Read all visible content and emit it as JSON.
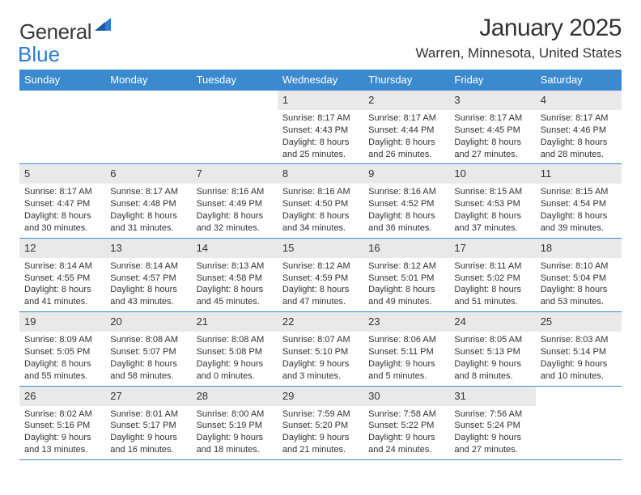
{
  "logo": {
    "word1": "General",
    "word2": "Blue"
  },
  "title": "January 2025",
  "location": "Warren, Minnesota, United States",
  "colors": {
    "header_bg": "#3b8ad0",
    "header_text": "#ffffff",
    "border": "#3b8ad0",
    "daynum_bg": "#e9e9e9",
    "text": "#333333",
    "logo_gray": "#3a3a3a",
    "logo_blue": "#2e7cd6",
    "page_bg": "#ffffff"
  },
  "typography": {
    "title_fontsize": 30,
    "location_fontsize": 17,
    "dayhead_fontsize": 13,
    "daynum_fontsize": 13,
    "daytext_fontsize": 11
  },
  "day_headers": [
    "Sunday",
    "Monday",
    "Tuesday",
    "Wednesday",
    "Thursday",
    "Friday",
    "Saturday"
  ],
  "weeks": [
    [
      {
        "n": "",
        "sr": "",
        "ss": "",
        "dh": "",
        "dm": ""
      },
      {
        "n": "",
        "sr": "",
        "ss": "",
        "dh": "",
        "dm": ""
      },
      {
        "n": "",
        "sr": "",
        "ss": "",
        "dh": "",
        "dm": ""
      },
      {
        "n": "1",
        "sr": "8:17 AM",
        "ss": "4:43 PM",
        "dh": "8",
        "dm": "25"
      },
      {
        "n": "2",
        "sr": "8:17 AM",
        "ss": "4:44 PM",
        "dh": "8",
        "dm": "26"
      },
      {
        "n": "3",
        "sr": "8:17 AM",
        "ss": "4:45 PM",
        "dh": "8",
        "dm": "27"
      },
      {
        "n": "4",
        "sr": "8:17 AM",
        "ss": "4:46 PM",
        "dh": "8",
        "dm": "28"
      }
    ],
    [
      {
        "n": "5",
        "sr": "8:17 AM",
        "ss": "4:47 PM",
        "dh": "8",
        "dm": "30"
      },
      {
        "n": "6",
        "sr": "8:17 AM",
        "ss": "4:48 PM",
        "dh": "8",
        "dm": "31"
      },
      {
        "n": "7",
        "sr": "8:16 AM",
        "ss": "4:49 PM",
        "dh": "8",
        "dm": "32"
      },
      {
        "n": "8",
        "sr": "8:16 AM",
        "ss": "4:50 PM",
        "dh": "8",
        "dm": "34"
      },
      {
        "n": "9",
        "sr": "8:16 AM",
        "ss": "4:52 PM",
        "dh": "8",
        "dm": "36"
      },
      {
        "n": "10",
        "sr": "8:15 AM",
        "ss": "4:53 PM",
        "dh": "8",
        "dm": "37"
      },
      {
        "n": "11",
        "sr": "8:15 AM",
        "ss": "4:54 PM",
        "dh": "8",
        "dm": "39"
      }
    ],
    [
      {
        "n": "12",
        "sr": "8:14 AM",
        "ss": "4:55 PM",
        "dh": "8",
        "dm": "41"
      },
      {
        "n": "13",
        "sr": "8:14 AM",
        "ss": "4:57 PM",
        "dh": "8",
        "dm": "43"
      },
      {
        "n": "14",
        "sr": "8:13 AM",
        "ss": "4:58 PM",
        "dh": "8",
        "dm": "45"
      },
      {
        "n": "15",
        "sr": "8:12 AM",
        "ss": "4:59 PM",
        "dh": "8",
        "dm": "47"
      },
      {
        "n": "16",
        "sr": "8:12 AM",
        "ss": "5:01 PM",
        "dh": "8",
        "dm": "49"
      },
      {
        "n": "17",
        "sr": "8:11 AM",
        "ss": "5:02 PM",
        "dh": "8",
        "dm": "51"
      },
      {
        "n": "18",
        "sr": "8:10 AM",
        "ss": "5:04 PM",
        "dh": "8",
        "dm": "53"
      }
    ],
    [
      {
        "n": "19",
        "sr": "8:09 AM",
        "ss": "5:05 PM",
        "dh": "8",
        "dm": "55"
      },
      {
        "n": "20",
        "sr": "8:08 AM",
        "ss": "5:07 PM",
        "dh": "8",
        "dm": "58"
      },
      {
        "n": "21",
        "sr": "8:08 AM",
        "ss": "5:08 PM",
        "dh": "9",
        "dm": "0"
      },
      {
        "n": "22",
        "sr": "8:07 AM",
        "ss": "5:10 PM",
        "dh": "9",
        "dm": "3"
      },
      {
        "n": "23",
        "sr": "8:06 AM",
        "ss": "5:11 PM",
        "dh": "9",
        "dm": "5"
      },
      {
        "n": "24",
        "sr": "8:05 AM",
        "ss": "5:13 PM",
        "dh": "9",
        "dm": "8"
      },
      {
        "n": "25",
        "sr": "8:03 AM",
        "ss": "5:14 PM",
        "dh": "9",
        "dm": "10"
      }
    ],
    [
      {
        "n": "26",
        "sr": "8:02 AM",
        "ss": "5:16 PM",
        "dh": "9",
        "dm": "13"
      },
      {
        "n": "27",
        "sr": "8:01 AM",
        "ss": "5:17 PM",
        "dh": "9",
        "dm": "16"
      },
      {
        "n": "28",
        "sr": "8:00 AM",
        "ss": "5:19 PM",
        "dh": "9",
        "dm": "18"
      },
      {
        "n": "29",
        "sr": "7:59 AM",
        "ss": "5:20 PM",
        "dh": "9",
        "dm": "21"
      },
      {
        "n": "30",
        "sr": "7:58 AM",
        "ss": "5:22 PM",
        "dh": "9",
        "dm": "24"
      },
      {
        "n": "31",
        "sr": "7:56 AM",
        "ss": "5:24 PM",
        "dh": "9",
        "dm": "27"
      },
      {
        "n": "",
        "sr": "",
        "ss": "",
        "dh": "",
        "dm": ""
      }
    ]
  ]
}
